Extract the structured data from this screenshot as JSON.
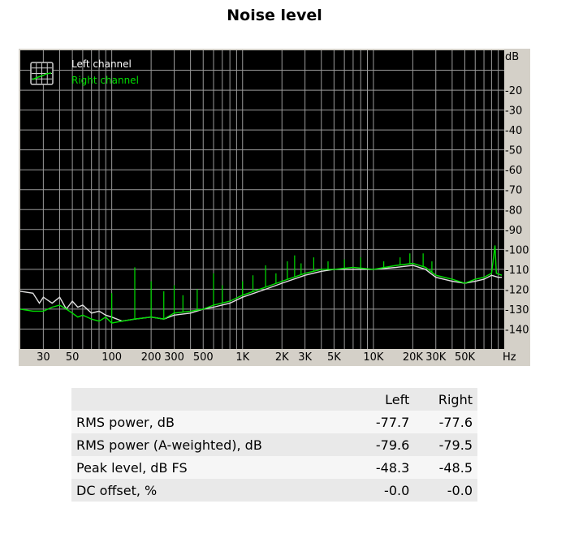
{
  "page": {
    "title": "Noise level"
  },
  "chart_data": {
    "type": "line",
    "title": "Noise level",
    "x_scale": "log",
    "xlim": [
      20,
      100000
    ],
    "ylim": [
      -150,
      0
    ],
    "x_unit": "Hz",
    "y_unit": "dB",
    "grid": true,
    "legend_position": "top-left",
    "background": "#000000",
    "x_ticks": [
      {
        "v": 30,
        "t": "30"
      },
      {
        "v": 50,
        "t": "50"
      },
      {
        "v": 100,
        "t": "100"
      },
      {
        "v": 200,
        "t": "200"
      },
      {
        "v": 300,
        "t": "300"
      },
      {
        "v": 500,
        "t": "500"
      },
      {
        "v": 1000,
        "t": "1K"
      },
      {
        "v": 2000,
        "t": "2K"
      },
      {
        "v": 3000,
        "t": "3K"
      },
      {
        "v": 5000,
        "t": "5K"
      },
      {
        "v": 10000,
        "t": "10K"
      },
      {
        "v": 20000,
        "t": "20K"
      },
      {
        "v": 30000,
        "t": "30K"
      },
      {
        "v": 50000,
        "t": "50K"
      }
    ],
    "y_ticks": [
      {
        "v": -20,
        "t": "-20"
      },
      {
        "v": -30,
        "t": "-30"
      },
      {
        "v": -40,
        "t": "-40"
      },
      {
        "v": -50,
        "t": "-50"
      },
      {
        "v": -60,
        "t": "-60"
      },
      {
        "v": -70,
        "t": "-70"
      },
      {
        "v": -80,
        "t": "-80"
      },
      {
        "v": -90,
        "t": "-90"
      },
      {
        "v": -100,
        "t": "-100"
      },
      {
        "v": -110,
        "t": "-110"
      },
      {
        "v": -120,
        "t": "-120"
      },
      {
        "v": -130,
        "t": "-130"
      },
      {
        "v": -140,
        "t": "-140"
      }
    ],
    "series": [
      {
        "name": "Left channel",
        "color": "#e0e0e0",
        "points": [
          [
            20,
            -121
          ],
          [
            25,
            -122
          ],
          [
            28,
            -127
          ],
          [
            30,
            -124
          ],
          [
            35,
            -127
          ],
          [
            40,
            -124
          ],
          [
            45,
            -130
          ],
          [
            50,
            -126
          ],
          [
            55,
            -129
          ],
          [
            60,
            -128
          ],
          [
            70,
            -132
          ],
          [
            80,
            -131
          ],
          [
            90,
            -133
          ],
          [
            100,
            -134
          ],
          [
            120,
            -136
          ],
          [
            150,
            -135
          ],
          [
            200,
            -134
          ],
          [
            250,
            -135
          ],
          [
            300,
            -133
          ],
          [
            400,
            -132
          ],
          [
            500,
            -130
          ],
          [
            600,
            -129
          ],
          [
            800,
            -127
          ],
          [
            1000,
            -124
          ],
          [
            1500,
            -120
          ],
          [
            2000,
            -117
          ],
          [
            3000,
            -113
          ],
          [
            4000,
            -111
          ],
          [
            5000,
            -110
          ],
          [
            7000,
            -110
          ],
          [
            10000,
            -110
          ],
          [
            15000,
            -109
          ],
          [
            20000,
            -108
          ],
          [
            25000,
            -110
          ],
          [
            30000,
            -114
          ],
          [
            40000,
            -116
          ],
          [
            50000,
            -117
          ],
          [
            60000,
            -116
          ],
          [
            70000,
            -115
          ],
          [
            80000,
            -113
          ],
          [
            90000,
            -114
          ],
          [
            96000,
            -114
          ]
        ]
      },
      {
        "name": "Right channel",
        "color": "#00e000",
        "points": [
          [
            20,
            -130
          ],
          [
            25,
            -131
          ],
          [
            30,
            -131
          ],
          [
            35,
            -129
          ],
          [
            40,
            -128
          ],
          [
            45,
            -130
          ],
          [
            50,
            -132
          ],
          [
            55,
            -134
          ],
          [
            60,
            -133
          ],
          [
            70,
            -135
          ],
          [
            80,
            -136
          ],
          [
            90,
            -134
          ],
          [
            100,
            -137
          ],
          [
            120,
            -136
          ],
          [
            150,
            -135
          ],
          [
            200,
            -134
          ],
          [
            250,
            -135
          ],
          [
            300,
            -132
          ],
          [
            400,
            -131
          ],
          [
            500,
            -130
          ],
          [
            600,
            -128
          ],
          [
            800,
            -126
          ],
          [
            1000,
            -123
          ],
          [
            1500,
            -119
          ],
          [
            2000,
            -116
          ],
          [
            3000,
            -112
          ],
          [
            4000,
            -110
          ],
          [
            5000,
            -110
          ],
          [
            7000,
            -109
          ],
          [
            10000,
            -110
          ],
          [
            15000,
            -108
          ],
          [
            20000,
            -107
          ],
          [
            25000,
            -109
          ],
          [
            30000,
            -113
          ],
          [
            40000,
            -115
          ],
          [
            50000,
            -117
          ],
          [
            60000,
            -115
          ],
          [
            70000,
            -114
          ],
          [
            80000,
            -112
          ],
          [
            85000,
            -98
          ],
          [
            87000,
            -112
          ],
          [
            96000,
            -113
          ]
        ],
        "spikes": [
          [
            100,
            -122
          ],
          [
            150,
            -109
          ],
          [
            200,
            -116
          ],
          [
            250,
            -121
          ],
          [
            300,
            -118
          ],
          [
            350,
            -123
          ],
          [
            450,
            -120
          ],
          [
            600,
            -112
          ],
          [
            700,
            -118
          ],
          [
            1000,
            -116
          ],
          [
            1200,
            -113
          ],
          [
            1500,
            -108
          ],
          [
            1800,
            -112
          ],
          [
            2200,
            -106
          ],
          [
            2500,
            -103
          ],
          [
            2800,
            -107
          ],
          [
            3500,
            -104
          ],
          [
            4500,
            -106
          ],
          [
            6000,
            -105
          ],
          [
            8000,
            -104
          ],
          [
            12000,
            -106
          ],
          [
            16000,
            -104
          ],
          [
            19000,
            -102
          ],
          [
            24000,
            -102
          ],
          [
            28000,
            -106
          ]
        ]
      }
    ],
    "legend": [
      {
        "name": "Left channel",
        "color": "#ffffff"
      },
      {
        "name": "Right channel",
        "color": "#00e000"
      }
    ]
  },
  "stats_table": {
    "columns": [
      "",
      "Left",
      "Right"
    ],
    "rows": [
      {
        "label": "RMS power, dB",
        "left": "-77.7",
        "right": "-77.6"
      },
      {
        "label": "RMS power (A-weighted), dB",
        "left": "-79.6",
        "right": "-79.5"
      },
      {
        "label": "Peak level, dB FS",
        "left": "-48.3",
        "right": "-48.5"
      },
      {
        "label": "DC offset, %",
        "left": "-0.0",
        "right": "-0.0"
      }
    ]
  }
}
